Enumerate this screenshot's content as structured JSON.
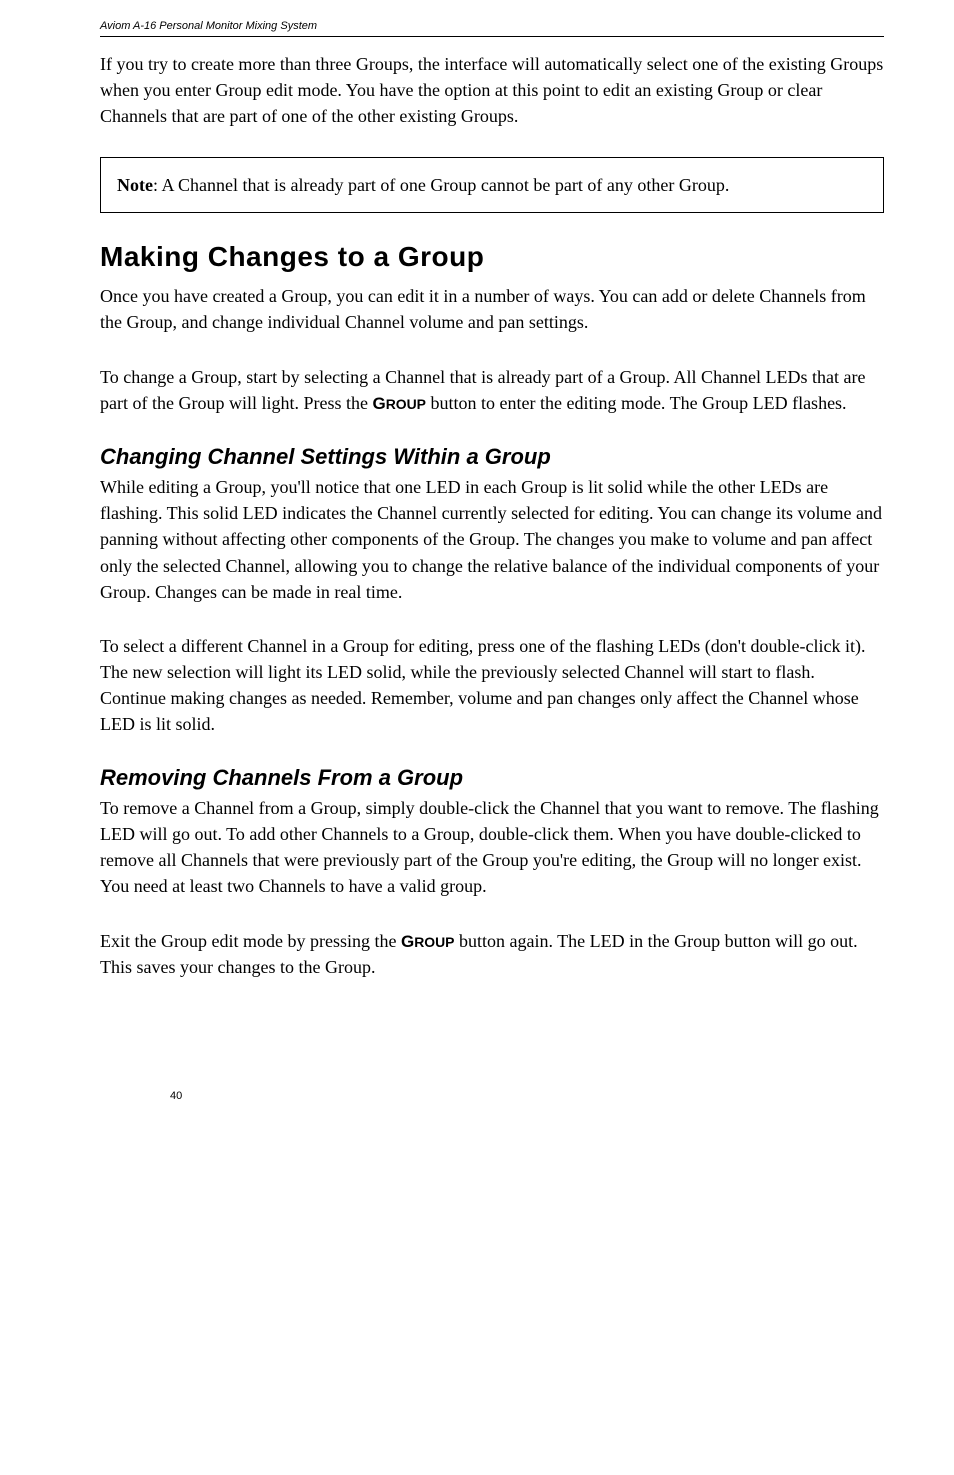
{
  "header": {
    "running_title": "Aviom A-16 Personal Monitor Mixing System"
  },
  "intro": {
    "p1": "If you try to create more than three Groups, the interface will automatically select one of the existing Groups when you enter Group edit mode. You have the option at this point to edit an existing Group or clear Channels that are part of one of the other existing Groups."
  },
  "note": {
    "label": "Note",
    "text": ": A Channel that is already part of one Group cannot be part of any other Group."
  },
  "section1": {
    "heading": "Making Changes to a Group",
    "p1": "Once you have created a Group, you can edit it in a number of ways. You can add or delete Channels from the Group, and change individual Channel volume and pan settings.",
    "p2a": "To change a Group, start by selecting a Channel that is already part of a Group. All Channel LEDs that are part of the Group will light. Press the ",
    "group_word_lead": "G",
    "group_word_rest": "ROUP",
    "p2b": " button to enter the editing mode. The Group LED flashes."
  },
  "section2": {
    "heading": "Changing Channel Settings Within a Group",
    "p1": "While editing a Group, you'll notice that one LED in each Group is lit solid while the other LEDs are flashing. This solid LED indicates the Channel currently selected for editing. You can change its volume and panning without affecting other components of the Group. The changes you make to volume and pan affect only the selected Channel, allowing you to change the relative balance of the individual components of your Group. Changes can be made in real time.",
    "p2": "To select a different Channel in a Group for editing, press one of the flashing LEDs (don't double-click it). The new selection will light its LED solid, while the previously selected Channel will start to flash. Continue making changes as needed. Remember, volume and pan changes only affect the Channel whose LED is lit solid."
  },
  "section3": {
    "heading": "Removing Channels From a Group",
    "p1": "To remove a Channel from a Group, simply double-click the Channel that you want to remove. The flashing LED will go out. To add other Channels to a Group, double-click them. When you have double-clicked to remove all Channels that were previously part of the Group you're editing, the Group will no longer exist. You need at least two Channels to have a valid group.",
    "p2a": "Exit the Group edit mode by pressing the ",
    "group_word_lead": "G",
    "group_word_rest": "ROUP",
    "p2b": " button again. The LED in the Group button will go out. This saves your changes to the Group."
  },
  "footer": {
    "page_number": "40"
  }
}
